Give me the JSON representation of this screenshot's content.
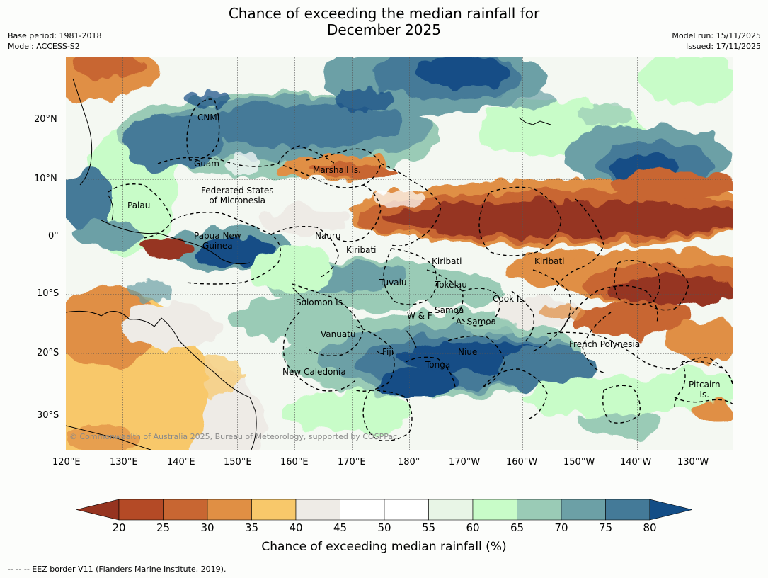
{
  "title": "Chance of exceeding the median rainfall for\nDecember 2025",
  "title_line1": "Chance of exceeding the median rainfall for",
  "title_line2": "December 2025",
  "meta": {
    "base_period": "Base period: 1981-2018",
    "model": "Model: ACCESS-S2",
    "model_run": "Model run: 15/11/2025",
    "issued": "Issued: 17/11/2025"
  },
  "map": {
    "lat_ticks": [
      "20°N",
      "10°N",
      "0°",
      "10°S",
      "20°S",
      "30°S"
    ],
    "lon_ticks": [
      "120°E",
      "130°E",
      "140°E",
      "150°E",
      "160°E",
      "170°E",
      "180°",
      "170°W",
      "160°W",
      "150°W",
      "140°W",
      "130°W"
    ],
    "region_labels": [
      "CNMI",
      "Guam",
      "Marshall Is.",
      "Federated States\nof Micronesia",
      "Palau",
      "Papua New\nGuinea",
      "Nauru",
      "Kiribati",
      "Kiribati",
      "Kiribati",
      "Tuvalu",
      "Tokelau",
      "Solomon Is.",
      "Cook Is.",
      "Samoa",
      "W & F",
      "A. Samoa",
      "Vanuatu",
      "Fiji",
      "Niue",
      "French Polynesia",
      "Tonga",
      "New Caledonia",
      "Pitcairn\nIs."
    ],
    "copyright": "© Commonwealth of Australia 2025, Bureau of Meteorology, supported by COSPPac"
  },
  "colorbar": {
    "title": "Chance of exceeding median rainfall (%)",
    "tick_labels": [
      "20",
      "25",
      "30",
      "35",
      "40",
      "45",
      "50",
      "55",
      "60",
      "65",
      "70",
      "75",
      "80"
    ],
    "colors": {
      "below_20": "#963420",
      "c20_25": "#b44a26",
      "c25_30": "#c86632",
      "c30_35": "#e08f44",
      "c35_40": "#f8c86a",
      "c40_45": "#eeebe6",
      "c45_50": "#ffffff",
      "c50_55": "#ffffff",
      "c55_60": "#e8f5e6",
      "c60_65": "#c8fcc8",
      "c65_70": "#9acbb6",
      "c70_75": "#6ca0a6",
      "c75_80": "#447a98",
      "above_80": "#134d86"
    }
  },
  "footnote": "--  --  -- EEZ border V11 (Flanders Marine Institute, 2019)."
}
